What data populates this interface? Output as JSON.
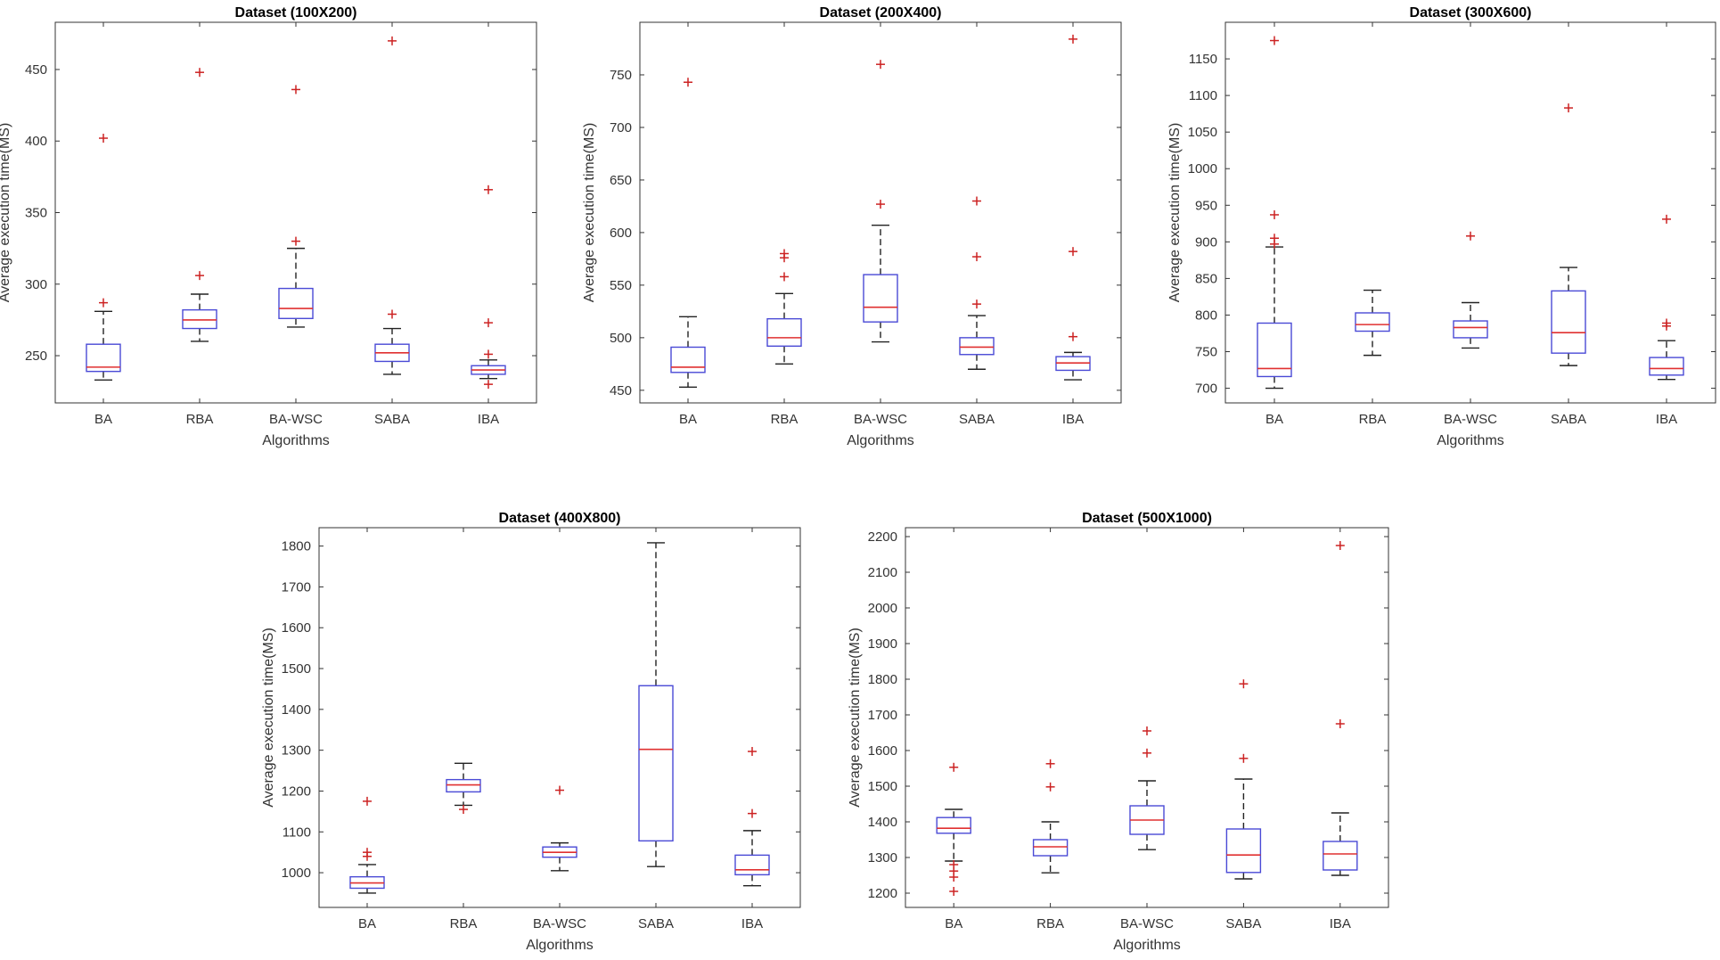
{
  "figure": {
    "colors": {
      "box": "#4a4ad6",
      "median": "#e03030",
      "outlier": "#cc2222",
      "whisker": "#222222",
      "axis": "#333333",
      "text": "#333333"
    }
  },
  "chart_data": [
    {
      "type": "box",
      "title": "Dataset (100X200)",
      "xlabel": "Algorithms",
      "ylabel": "Average execution time(MS)",
      "categories": [
        "BA",
        "RBA",
        "BA-WSC",
        "SABA",
        "IBA"
      ],
      "ylim": [
        217,
        483
      ],
      "yticks": [
        250,
        300,
        350,
        400,
        450
      ],
      "boxes": [
        {
          "min": 233,
          "q1": 239,
          "median": 242,
          "q3": 258,
          "max": 281,
          "outliers": [
            287,
            402
          ]
        },
        {
          "min": 260,
          "q1": 269,
          "median": 275,
          "q3": 282,
          "max": 293,
          "outliers": [
            306,
            448
          ]
        },
        {
          "min": 270,
          "q1": 276,
          "median": 283,
          "q3": 297,
          "max": 325,
          "outliers": [
            330,
            436
          ]
        },
        {
          "min": 237,
          "q1": 246,
          "median": 252,
          "q3": 258,
          "max": 269,
          "outliers": [
            279,
            470
          ]
        },
        {
          "min": 234,
          "q1": 237,
          "median": 240,
          "q3": 243,
          "max": 247,
          "outliers": [
            230,
            251,
            273,
            366
          ]
        }
      ]
    },
    {
      "type": "box",
      "title": "Dataset (200X400)",
      "xlabel": "Algorithms",
      "ylabel": "Average execution time(MS)",
      "categories": [
        "BA",
        "RBA",
        "BA-WSC",
        "SABA",
        "IBA"
      ],
      "ylim": [
        438,
        800
      ],
      "yticks": [
        450,
        500,
        550,
        600,
        650,
        700,
        750
      ],
      "boxes": [
        {
          "min": 453,
          "q1": 467,
          "median": 472,
          "q3": 491,
          "max": 520,
          "outliers": [
            743
          ]
        },
        {
          "min": 475,
          "q1": 492,
          "median": 500,
          "q3": 518,
          "max": 542,
          "outliers": [
            558,
            576,
            580
          ]
        },
        {
          "min": 496,
          "q1": 515,
          "median": 529,
          "q3": 560,
          "max": 607,
          "outliers": [
            627,
            760
          ]
        },
        {
          "min": 470,
          "q1": 484,
          "median": 491,
          "q3": 500,
          "max": 521,
          "outliers": [
            532,
            577,
            630
          ]
        },
        {
          "min": 460,
          "q1": 469,
          "median": 476,
          "q3": 482,
          "max": 486,
          "outliers": [
            501,
            582,
            784
          ]
        }
      ]
    },
    {
      "type": "box",
      "title": "Dataset (300X600)",
      "xlabel": "Algorithms",
      "ylabel": "Average execution time(MS)",
      "categories": [
        "BA",
        "RBA",
        "BA-WSC",
        "SABA",
        "IBA"
      ],
      "ylim": [
        680,
        1200
      ],
      "yticks": [
        700,
        750,
        800,
        850,
        900,
        950,
        1000,
        1050,
        1100,
        1150
      ],
      "boxes": [
        {
          "min": 700,
          "q1": 716,
          "median": 727,
          "q3": 789,
          "max": 893,
          "outliers": [
            897,
            905,
            937,
            1175
          ]
        },
        {
          "min": 745,
          "q1": 778,
          "median": 787,
          "q3": 803,
          "max": 834,
          "outliers": []
        },
        {
          "min": 755,
          "q1": 769,
          "median": 783,
          "q3": 792,
          "max": 817,
          "outliers": [
            908
          ]
        },
        {
          "min": 731,
          "q1": 748,
          "median": 776,
          "q3": 833,
          "max": 865,
          "outliers": [
            1083
          ]
        },
        {
          "min": 712,
          "q1": 718,
          "median": 727,
          "q3": 742,
          "max": 765,
          "outliers": [
            785,
            789,
            931
          ]
        }
      ]
    },
    {
      "type": "box",
      "title": "Dataset (400X800)",
      "xlabel": "Algorithms",
      "ylabel": "Average execution time(MS)",
      "categories": [
        "BA",
        "RBA",
        "BA-WSC",
        "SABA",
        "IBA"
      ],
      "ylim": [
        915,
        1845
      ],
      "yticks": [
        1000,
        1100,
        1200,
        1300,
        1400,
        1500,
        1600,
        1700,
        1800
      ],
      "boxes": [
        {
          "min": 950,
          "q1": 962,
          "median": 975,
          "q3": 990,
          "max": 1020,
          "outliers": [
            1040,
            1050,
            1175
          ]
        },
        {
          "min": 1165,
          "q1": 1198,
          "median": 1215,
          "q3": 1228,
          "max": 1268,
          "outliers": [
            1155
          ]
        },
        {
          "min": 1005,
          "q1": 1038,
          "median": 1050,
          "q3": 1063,
          "max": 1073,
          "outliers": [
            1202
          ]
        },
        {
          "min": 1015,
          "q1": 1078,
          "median": 1302,
          "q3": 1458,
          "max": 1808,
          "outliers": []
        },
        {
          "min": 968,
          "q1": 995,
          "median": 1007,
          "q3": 1043,
          "max": 1103,
          "outliers": [
            1145,
            1297
          ]
        }
      ]
    },
    {
      "type": "box",
      "title": "Dataset (500X1000)",
      "xlabel": "Algorithms",
      "ylabel": "Average execution time(MS)",
      "categories": [
        "BA",
        "RBA",
        "BA-WSC",
        "SABA",
        "IBA"
      ],
      "ylim": [
        1160,
        2225
      ],
      "yticks": [
        1200,
        1300,
        1400,
        1500,
        1600,
        1700,
        1800,
        1900,
        2000,
        2100,
        2200
      ],
      "boxes": [
        {
          "min": 1290,
          "q1": 1368,
          "median": 1382,
          "q3": 1412,
          "max": 1435,
          "outliers": [
            1205,
            1245,
            1262,
            1280,
            1553
          ]
        },
        {
          "min": 1257,
          "q1": 1305,
          "median": 1330,
          "q3": 1350,
          "max": 1400,
          "outliers": [
            1498,
            1563
          ]
        },
        {
          "min": 1322,
          "q1": 1365,
          "median": 1405,
          "q3": 1445,
          "max": 1515,
          "outliers": [
            1593,
            1655
          ]
        },
        {
          "min": 1240,
          "q1": 1258,
          "median": 1307,
          "q3": 1380,
          "max": 1520,
          "outliers": [
            1578,
            1787
          ]
        },
        {
          "min": 1250,
          "q1": 1265,
          "median": 1310,
          "q3": 1345,
          "max": 1425,
          "outliers": [
            1675,
            2175
          ]
        }
      ]
    }
  ]
}
